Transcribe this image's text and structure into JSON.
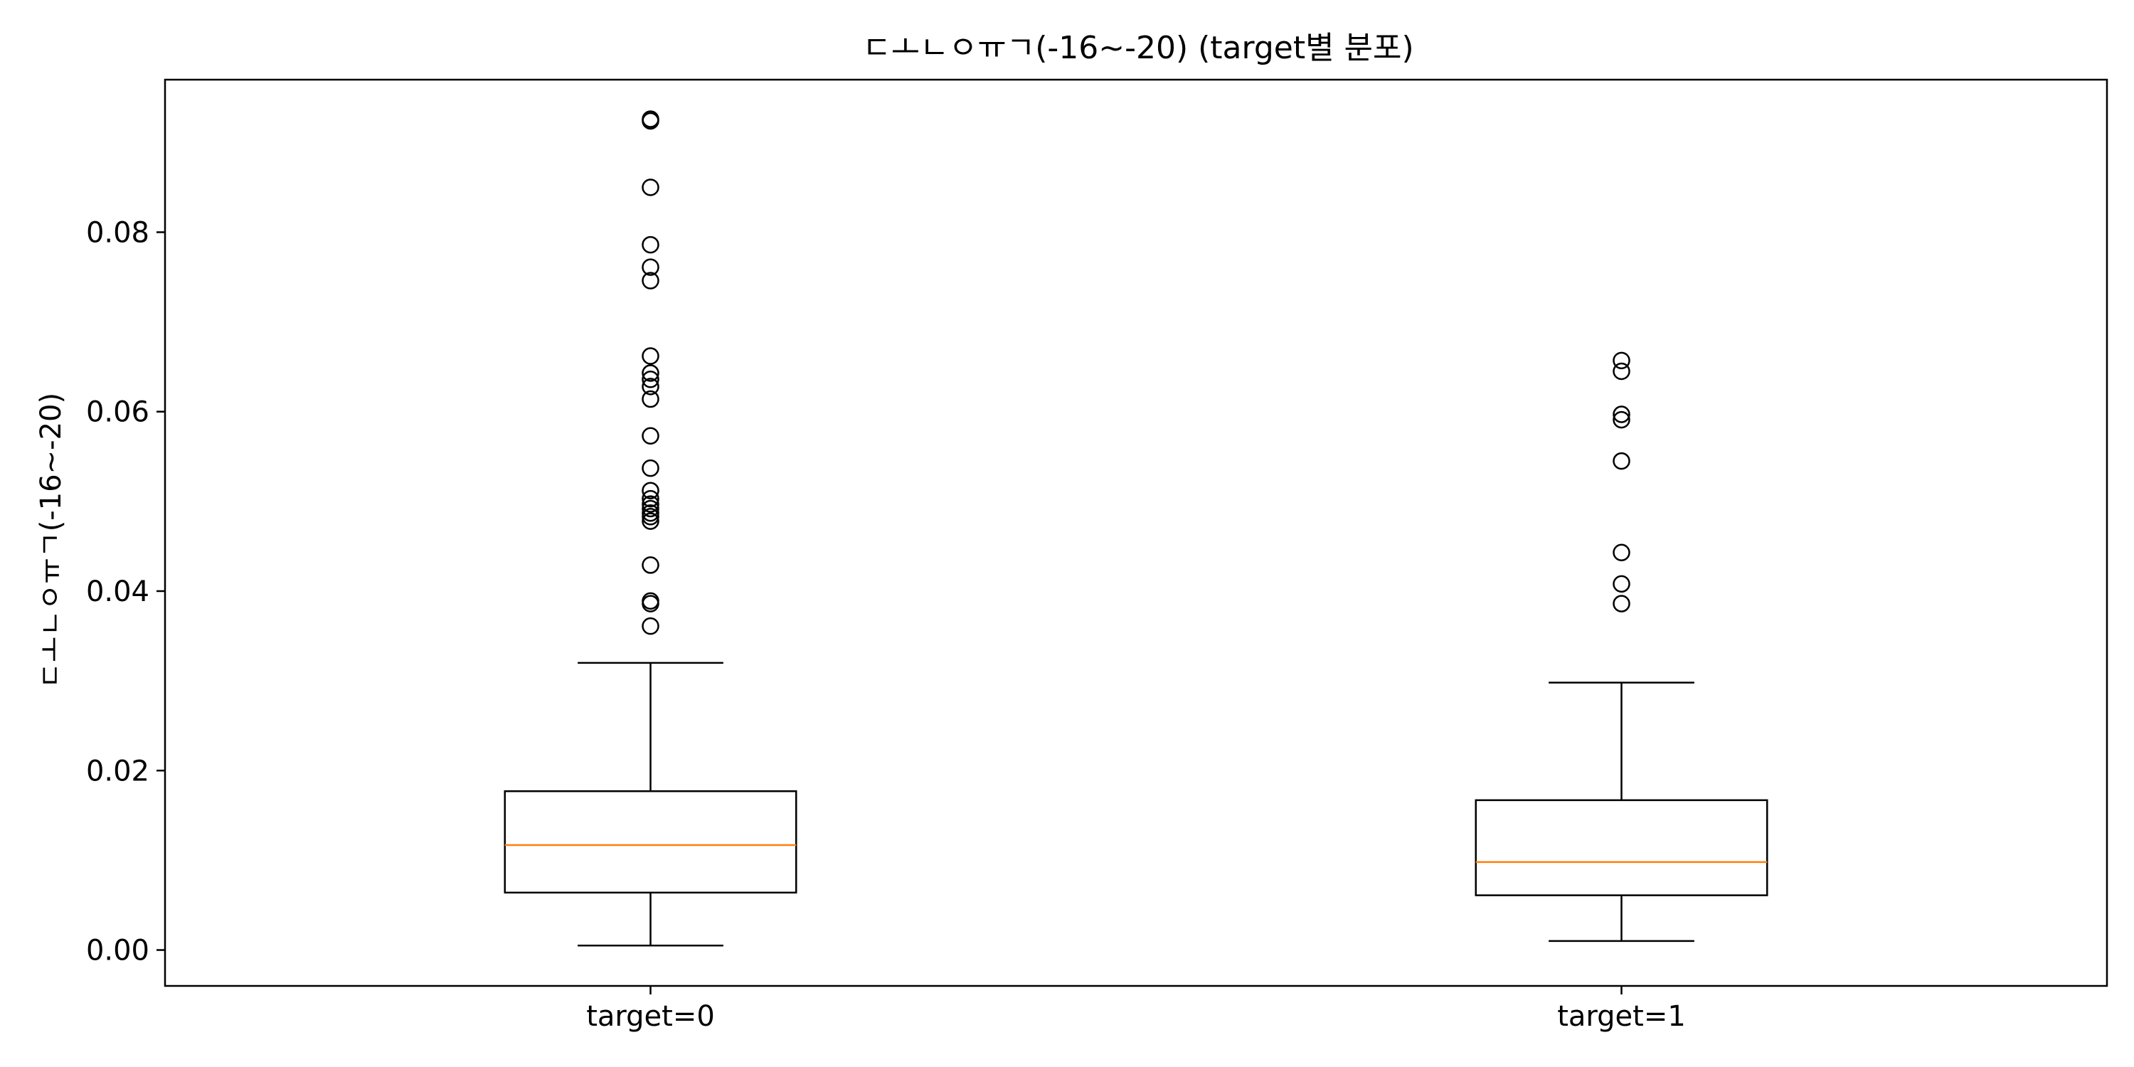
{
  "chart_data": {
    "type": "box",
    "title": "ㄷㅗㄴㅇㅠㄱ(-16~-20) (target별 분포)",
    "xlabel": "",
    "ylabel": "ㄷㅗㄴㅇㅠㄱ(-16~-20)",
    "ylim": [
      -0.004,
      0.097
    ],
    "yticks": [
      "0.00",
      "0.02",
      "0.04",
      "0.06",
      "0.08"
    ],
    "grid": false,
    "categories": [
      "target=0",
      "target=1"
    ],
    "boxes": [
      {
        "name": "target=0",
        "whisker_low": 0.0005,
        "q1": 0.0064,
        "median": 0.0117,
        "q3": 0.0177,
        "whisker_high": 0.032,
        "outliers": [
          0.0361,
          0.0386,
          0.0389,
          0.0429,
          0.0478,
          0.0483,
          0.0487,
          0.0492,
          0.0497,
          0.0503,
          0.0512,
          0.0537,
          0.0573,
          0.0614,
          0.0628,
          0.0636,
          0.0643,
          0.0662,
          0.0746,
          0.0761,
          0.0786,
          0.085,
          0.0924,
          0.0926
        ]
      },
      {
        "name": "target=1",
        "whisker_low": 0.001,
        "q1": 0.0061,
        "median": 0.0098,
        "q3": 0.0167,
        "whisker_high": 0.0298,
        "outliers": [
          0.0386,
          0.0408,
          0.0443,
          0.0545,
          0.0591,
          0.0597,
          0.0645,
          0.0657
        ]
      }
    ],
    "colors": {
      "box": "#000000",
      "median": "#ff7f0e",
      "outlier": "#000000"
    }
  }
}
